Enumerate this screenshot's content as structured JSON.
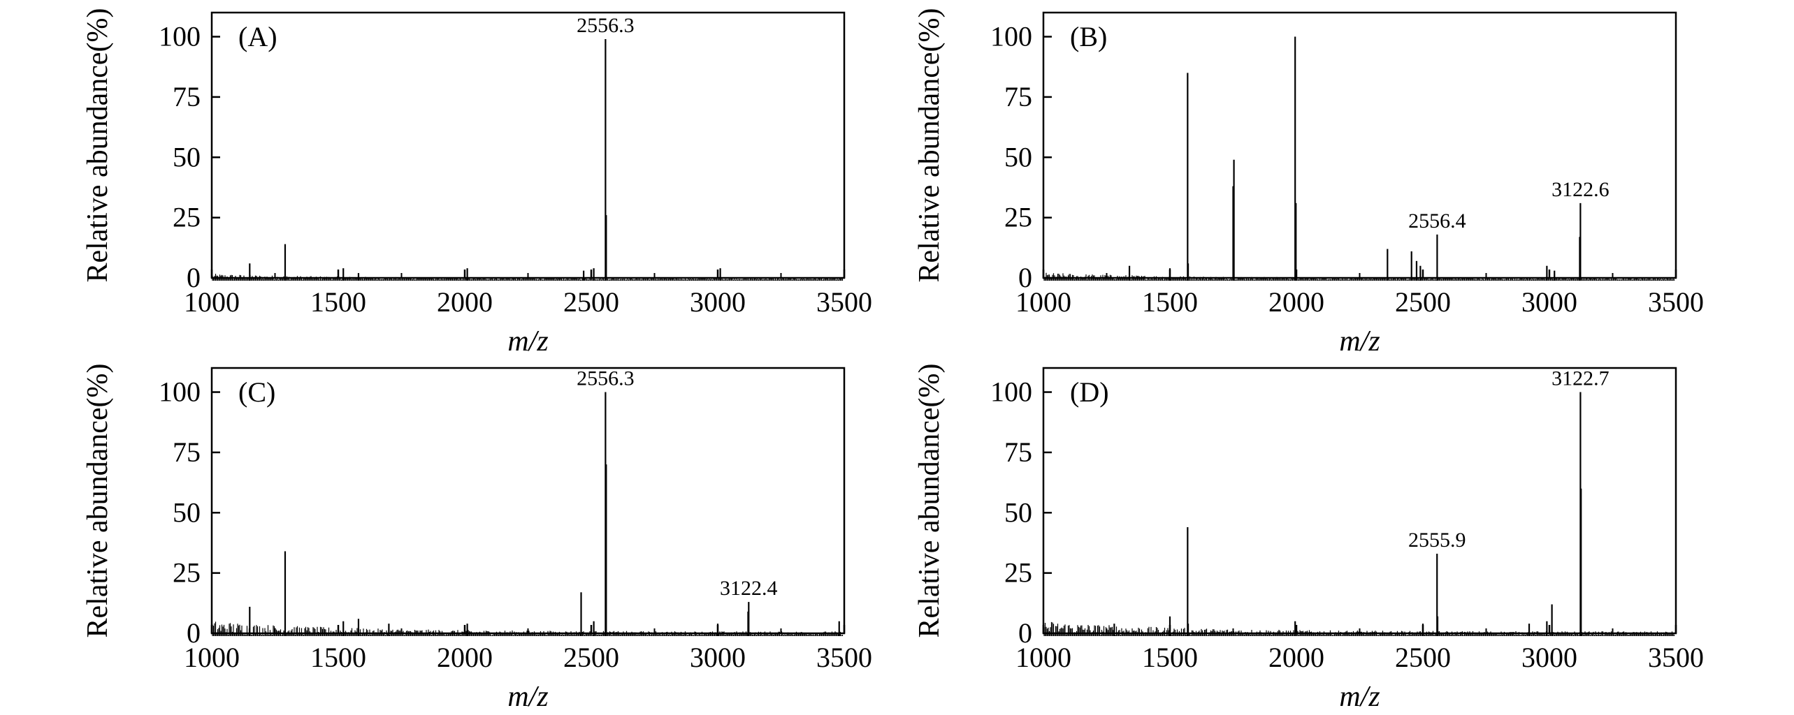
{
  "chart_data": [
    {
      "type": "bar",
      "panel_label": "(A)",
      "xlabel": "m/z",
      "ylabel": "Relative abundance(%)",
      "xlim": [
        1000,
        3500
      ],
      "ylim": [
        0,
        110
      ],
      "xticks": [
        1000,
        1500,
        2000,
        2500,
        3000,
        3500
      ],
      "yticks": [
        0,
        25,
        50,
        75,
        100
      ],
      "noise_max": 2.5,
      "peaks": [
        {
          "x": 1150,
          "y": 6
        },
        {
          "x": 1290,
          "y": 14
        },
        {
          "x": 1520,
          "y": 4
        },
        {
          "x": 1580,
          "y": 2
        },
        {
          "x": 2010,
          "y": 4
        },
        {
          "x": 2470,
          "y": 3
        },
        {
          "x": 2510,
          "y": 4
        },
        {
          "x": 2556.3,
          "y": 99
        },
        {
          "x": 2559,
          "y": 26
        },
        {
          "x": 3010,
          "y": 4
        }
      ],
      "peak_labels": [
        {
          "x": 2556.3,
          "y": 99,
          "text": "2556.3"
        }
      ]
    },
    {
      "type": "bar",
      "panel_label": "(B)",
      "xlabel": "m/z",
      "ylabel": "Relative abundance(%)",
      "xlim": [
        1000,
        3500
      ],
      "ylim": [
        0,
        110
      ],
      "xticks": [
        1000,
        1500,
        2000,
        2500,
        3000,
        3500
      ],
      "yticks": [
        0,
        25,
        50,
        75,
        100
      ],
      "noise_max": 3,
      "peaks": [
        {
          "x": 1340,
          "y": 5
        },
        {
          "x": 1500,
          "y": 4
        },
        {
          "x": 1570,
          "y": 85
        },
        {
          "x": 1572,
          "y": 6
        },
        {
          "x": 1750,
          "y": 38
        },
        {
          "x": 1753,
          "y": 49
        },
        {
          "x": 1995,
          "y": 100
        },
        {
          "x": 1998,
          "y": 31
        },
        {
          "x": 2360,
          "y": 12
        },
        {
          "x": 2455,
          "y": 11
        },
        {
          "x": 2475,
          "y": 7
        },
        {
          "x": 2490,
          "y": 5
        },
        {
          "x": 2556.4,
          "y": 18
        },
        {
          "x": 2990,
          "y": 5
        },
        {
          "x": 3020,
          "y": 3
        },
        {
          "x": 3120,
          "y": 17
        },
        {
          "x": 3122.6,
          "y": 31
        }
      ],
      "peak_labels": [
        {
          "x": 2556.4,
          "y": 18,
          "text": "2556.4"
        },
        {
          "x": 3122.6,
          "y": 31,
          "text": "3122.6"
        }
      ]
    },
    {
      "type": "bar",
      "panel_label": "(C)",
      "xlabel": "m/z",
      "ylabel": "Relative abundance(%)",
      "xlim": [
        1000,
        3500
      ],
      "ylim": [
        0,
        110
      ],
      "xticks": [
        1000,
        1500,
        2000,
        2500,
        3000,
        3500
      ],
      "yticks": [
        0,
        25,
        50,
        75,
        100
      ],
      "noise_max": 6,
      "peaks": [
        {
          "x": 1150,
          "y": 11
        },
        {
          "x": 1290,
          "y": 34
        },
        {
          "x": 1520,
          "y": 5
        },
        {
          "x": 1580,
          "y": 6
        },
        {
          "x": 1700,
          "y": 4
        },
        {
          "x": 2010,
          "y": 4
        },
        {
          "x": 2460,
          "y": 17
        },
        {
          "x": 2510,
          "y": 5
        },
        {
          "x": 2556.3,
          "y": 100
        },
        {
          "x": 2559,
          "y": 70
        },
        {
          "x": 3000,
          "y": 4
        },
        {
          "x": 3122.4,
          "y": 13
        },
        {
          "x": 3120,
          "y": 9
        },
        {
          "x": 3480,
          "y": 5
        }
      ],
      "peak_labels": [
        {
          "x": 2556.3,
          "y": 100,
          "text": "2556.3"
        },
        {
          "x": 3122.4,
          "y": 13,
          "text": "3122.4"
        }
      ]
    },
    {
      "type": "bar",
      "panel_label": "(D)",
      "xlabel": "m/z",
      "ylabel": "Relative abundance(%)",
      "xlim": [
        1000,
        3500
      ],
      "ylim": [
        0,
        110
      ],
      "xticks": [
        1000,
        1500,
        2000,
        2500,
        3000,
        3500
      ],
      "yticks": [
        0,
        25,
        50,
        75,
        100
      ],
      "noise_max": 6,
      "peaks": [
        {
          "x": 1280,
          "y": 4
        },
        {
          "x": 1500,
          "y": 7
        },
        {
          "x": 1570,
          "y": 44
        },
        {
          "x": 1572,
          "y": 4
        },
        {
          "x": 1995,
          "y": 5
        },
        {
          "x": 2500,
          "y": 4
        },
        {
          "x": 2555.9,
          "y": 33
        },
        {
          "x": 2558,
          "y": 7
        },
        {
          "x": 2920,
          "y": 4
        },
        {
          "x": 2990,
          "y": 5
        },
        {
          "x": 3010,
          "y": 12
        },
        {
          "x": 3122.7,
          "y": 100
        },
        {
          "x": 3125,
          "y": 60
        }
      ],
      "peak_labels": [
        {
          "x": 2555.9,
          "y": 33,
          "text": "2555.9"
        },
        {
          "x": 3122.7,
          "y": 100,
          "text": "3122.7"
        }
      ]
    }
  ]
}
